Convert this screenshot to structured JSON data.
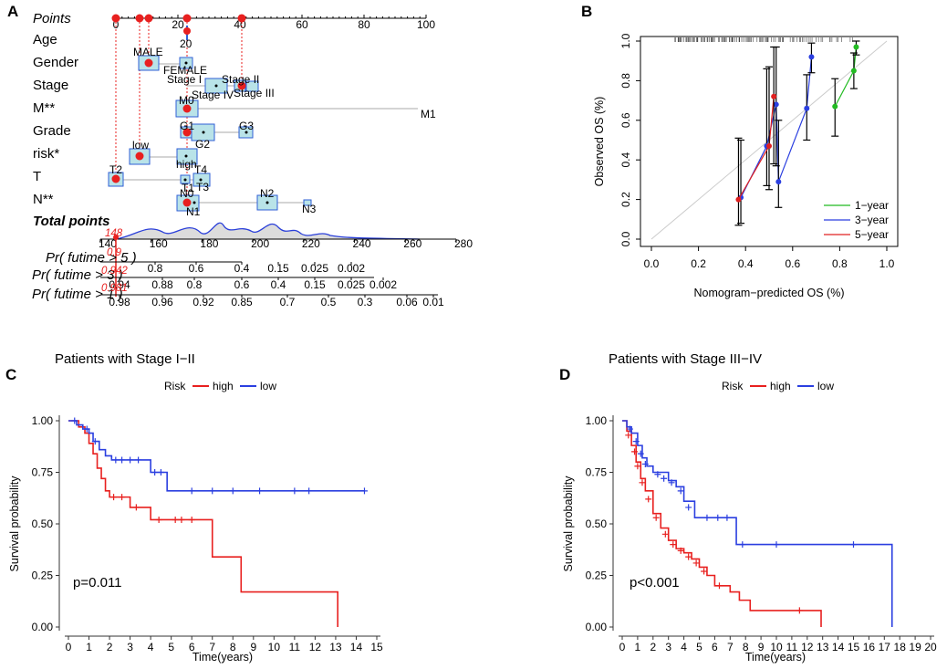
{
  "panels": {
    "A": {
      "label": "A",
      "points_label": "Points",
      "points_ticks": [
        "0",
        "20",
        "40",
        "60",
        "80",
        "100"
      ],
      "variables": [
        {
          "name": "Age",
          "labels": [
            "20"
          ]
        },
        {
          "name": "Gender",
          "labels": [
            "MALE",
            "FEMALE"
          ]
        },
        {
          "name": "Stage",
          "labels": [
            "Stage I",
            "Stage II",
            "Stage IV",
            "Stage III"
          ]
        },
        {
          "name": "M**",
          "labels": [
            "M0",
            "M1"
          ]
        },
        {
          "name": "Grade",
          "labels": [
            "G1",
            "G2",
            "G3"
          ]
        },
        {
          "name": "risk*",
          "labels": [
            "low",
            "high"
          ]
        },
        {
          "name": "T",
          "labels": [
            "T2",
            "T4",
            "T1",
            "T3"
          ]
        },
        {
          "name": "N**",
          "labels": [
            "N0",
            "N2",
            "N1",
            "N3"
          ]
        }
      ],
      "total_points_label": "Total points",
      "total_ticks": [
        "140",
        "160",
        "180",
        "200",
        "220",
        "240",
        "260",
        "280"
      ],
      "total_value": "148",
      "prob_rows": [
        {
          "label": "Pr( futime > 5 )",
          "value": "0.9",
          "ticks": [
            "0.8",
            "0.6",
            "0.4",
            "0.15",
            "0.025",
            "0.002"
          ]
        },
        {
          "label": "Pr( futime > 3 )",
          "value": "0.942",
          "ticks": [
            "0.94",
            "0.88",
            "0.8",
            "0.6",
            "0.4",
            "0.15",
            "0.025",
            "0.002"
          ]
        },
        {
          "label": "Pr( futime > 1 )",
          "value": "0.981",
          "ticks": [
            "0.98",
            "0.96",
            "0.92",
            "0.85",
            "0.7",
            "0.5",
            "0.3",
            "0.06",
            "0.01"
          ]
        }
      ],
      "colors": {
        "box": "#b9e3e8",
        "box_stroke": "#2f5fd6",
        "point": "#e8201f",
        "curve": "#2a3fd9"
      }
    },
    "B": {
      "label": "B",
      "chart_data": {
        "type": "line",
        "title": "",
        "xlabel": "Nomogram−predicted OS (%)",
        "ylabel": "Observed OS (%)",
        "xlim": [
          0,
          1
        ],
        "ylim": [
          0,
          1
        ],
        "x_ticks": [
          "0.0",
          "0.2",
          "0.4",
          "0.6",
          "0.8",
          "1.0"
        ],
        "y_ticks": [
          "0.0",
          "0.2",
          "0.4",
          "0.6",
          "0.8",
          "1.0"
        ],
        "legend_position": "bottom-right",
        "series": [
          {
            "name": "1−year",
            "color": "#22bb22",
            "x": [
              0.78,
              0.86,
              0.87
            ],
            "y": [
              0.67,
              0.85,
              0.97
            ],
            "ylow": [
              0.52,
              0.76,
              0.93
            ],
            "yhigh": [
              0.81,
              0.94,
              1.0
            ]
          },
          {
            "name": "3−year",
            "color": "#2b3fe0",
            "x": [
              0.38,
              0.49,
              0.53,
              0.54,
              0.66,
              0.68
            ],
            "y": [
              0.21,
              0.47,
              0.68,
              0.29,
              0.66,
              0.92
            ],
            "ylow": [
              0.08,
              0.27,
              0.37,
              0.16,
              0.5,
              0.84
            ],
            "yhigh": [
              0.5,
              0.86,
              0.97,
              0.6,
              0.83,
              0.99
            ]
          },
          {
            "name": "5−year",
            "color": "#e02020",
            "x": [
              0.37,
              0.5,
              0.52
            ],
            "y": [
              0.2,
              0.47,
              0.72
            ],
            "ylow": [
              0.07,
              0.25,
              0.38
            ],
            "yhigh": [
              0.51,
              0.87,
              0.97
            ]
          }
        ]
      }
    },
    "C": {
      "label": "C",
      "chart_data": {
        "type": "line",
        "title": "Patients with Stage I−II",
        "xlabel": "Time(years)",
        "ylabel": "Survival probability",
        "xlim": [
          0,
          15
        ],
        "ylim": [
          0,
          1
        ],
        "x_ticks": [
          "0",
          "1",
          "2",
          "3",
          "4",
          "5",
          "6",
          "7",
          "8",
          "9",
          "10",
          "11",
          "12",
          "13",
          "14",
          "15"
        ],
        "y_ticks": [
          "0.00",
          "0.25",
          "0.50",
          "0.75",
          "1.00"
        ],
        "legend_title": "Risk",
        "annotation": "p=0.011",
        "series": [
          {
            "name": "high",
            "color": "#e8201f",
            "steps": [
              [
                0,
                1.0
              ],
              [
                0.5,
                0.97
              ],
              [
                0.8,
                0.94
              ],
              [
                1.0,
                0.89
              ],
              [
                1.2,
                0.84
              ],
              [
                1.4,
                0.77
              ],
              [
                1.6,
                0.72
              ],
              [
                1.8,
                0.66
              ],
              [
                2.0,
                0.63
              ],
              [
                3.0,
                0.58
              ],
              [
                4.0,
                0.52
              ],
              [
                7.0,
                0.34
              ],
              [
                8.4,
                0.17
              ],
              [
                13.1,
                0.0
              ]
            ],
            "censor": [
              [
                2.2,
                0.63
              ],
              [
                2.6,
                0.63
              ],
              [
                3.3,
                0.58
              ],
              [
                4.4,
                0.52
              ],
              [
                5.2,
                0.52
              ],
              [
                5.5,
                0.52
              ],
              [
                6.0,
                0.52
              ]
            ]
          },
          {
            "name": "low",
            "color": "#2b3fe0",
            "steps": [
              [
                0,
                1.0
              ],
              [
                0.4,
                0.98
              ],
              [
                0.7,
                0.96
              ],
              [
                1.0,
                0.94
              ],
              [
                1.2,
                0.9
              ],
              [
                1.5,
                0.86
              ],
              [
                1.8,
                0.83
              ],
              [
                2.1,
                0.81
              ],
              [
                4.0,
                0.75
              ],
              [
                4.8,
                0.66
              ],
              [
                14.4,
                0.66
              ]
            ],
            "censor": [
              [
                0.3,
                1.0
              ],
              [
                0.9,
                0.96
              ],
              [
                1.3,
                0.9
              ],
              [
                2.3,
                0.81
              ],
              [
                2.6,
                0.81
              ],
              [
                3.0,
                0.81
              ],
              [
                3.4,
                0.81
              ],
              [
                4.2,
                0.75
              ],
              [
                4.5,
                0.75
              ],
              [
                6.0,
                0.66
              ],
              [
                7.0,
                0.66
              ],
              [
                8.0,
                0.66
              ],
              [
                9.3,
                0.66
              ],
              [
                11.0,
                0.66
              ],
              [
                11.7,
                0.66
              ],
              [
                14.4,
                0.66
              ]
            ]
          }
        ]
      }
    },
    "D": {
      "label": "D",
      "chart_data": {
        "type": "line",
        "title": "Patients with Stage III−IV",
        "xlabel": "Time(years)",
        "ylabel": "Survival probability",
        "xlim": [
          0,
          20
        ],
        "ylim": [
          0,
          1
        ],
        "x_ticks": [
          "0",
          "1",
          "2",
          "3",
          "4",
          "5",
          "6",
          "7",
          "8",
          "9",
          "10",
          "11",
          "12",
          "13",
          "14",
          "15",
          "16",
          "17",
          "18",
          "19",
          "20"
        ],
        "y_ticks": [
          "0.00",
          "0.25",
          "0.50",
          "0.75",
          "1.00"
        ],
        "legend_title": "Risk",
        "annotation": "p<0.001",
        "series": [
          {
            "name": "high",
            "color": "#e8201f",
            "steps": [
              [
                0,
                1.0
              ],
              [
                0.3,
                0.95
              ],
              [
                0.6,
                0.88
              ],
              [
                0.9,
                0.8
              ],
              [
                1.2,
                0.72
              ],
              [
                1.5,
                0.66
              ],
              [
                2.0,
                0.55
              ],
              [
                2.5,
                0.48
              ],
              [
                3.0,
                0.42
              ],
              [
                3.5,
                0.38
              ],
              [
                4.0,
                0.36
              ],
              [
                4.5,
                0.33
              ],
              [
                5.0,
                0.29
              ],
              [
                5.5,
                0.25
              ],
              [
                6.0,
                0.2
              ],
              [
                7.0,
                0.17
              ],
              [
                7.6,
                0.13
              ],
              [
                8.3,
                0.08
              ],
              [
                12.9,
                0.0
              ]
            ],
            "censor": [
              [
                0.4,
                0.93
              ],
              [
                0.8,
                0.85
              ],
              [
                1.0,
                0.78
              ],
              [
                1.3,
                0.7
              ],
              [
                1.7,
                0.62
              ],
              [
                2.2,
                0.53
              ],
              [
                2.8,
                0.45
              ],
              [
                3.3,
                0.4
              ],
              [
                3.8,
                0.37
              ],
              [
                4.3,
                0.34
              ],
              [
                4.8,
                0.31
              ],
              [
                5.3,
                0.27
              ],
              [
                6.3,
                0.2
              ],
              [
                11.5,
                0.08
              ]
            ]
          },
          {
            "name": "low",
            "color": "#2b3fe0",
            "steps": [
              [
                0,
                1.0
              ],
              [
                0.3,
                0.97
              ],
              [
                0.6,
                0.94
              ],
              [
                1.0,
                0.88
              ],
              [
                1.3,
                0.82
              ],
              [
                1.6,
                0.78
              ],
              [
                2.0,
                0.75
              ],
              [
                3.0,
                0.71
              ],
              [
                3.5,
                0.68
              ],
              [
                4.0,
                0.61
              ],
              [
                4.7,
                0.53
              ],
              [
                7.4,
                0.4
              ],
              [
                17.5,
                0.0
              ]
            ],
            "censor": [
              [
                0.5,
                0.96
              ],
              [
                0.9,
                0.9
              ],
              [
                1.2,
                0.84
              ],
              [
                1.5,
                0.79
              ],
              [
                2.3,
                0.74
              ],
              [
                2.7,
                0.72
              ],
              [
                3.2,
                0.7
              ],
              [
                3.8,
                0.66
              ],
              [
                4.3,
                0.58
              ],
              [
                5.5,
                0.53
              ],
              [
                6.2,
                0.53
              ],
              [
                6.8,
                0.53
              ],
              [
                7.8,
                0.4
              ],
              [
                10.0,
                0.4
              ],
              [
                15.0,
                0.4
              ]
            ]
          }
        ]
      }
    }
  }
}
